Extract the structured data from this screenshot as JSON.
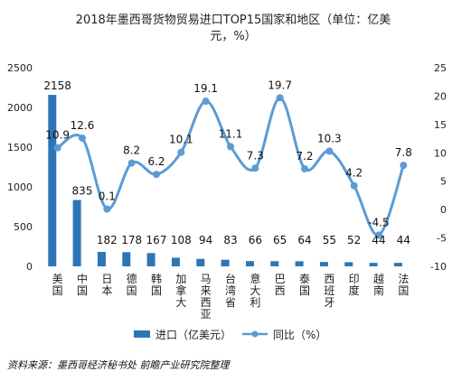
{
  "chart_data": {
    "type": "bar",
    "title": "2018年墨西哥货物贸易进口TOP15国家和地区（单位：亿美元，%）",
    "categories": [
      "美国",
      "中国",
      "日本",
      "德国",
      "韩国",
      "加拿大",
      "马来西亚",
      "台湾省",
      "意大利",
      "巴西",
      "泰国",
      "西班牙",
      "印度",
      "越南",
      "法国"
    ],
    "series": [
      {
        "name": "进口（亿美元）",
        "type": "bar",
        "axis": "left",
        "color": "#2e75b6",
        "values": [
          2158,
          835,
          182,
          178,
          167,
          108,
          94,
          83,
          66,
          65,
          64,
          55,
          52,
          44,
          44
        ]
      },
      {
        "name": "同比（%）",
        "type": "line",
        "axis": "right",
        "color": "#5b9bd5",
        "values": [
          10.9,
          12.6,
          0.1,
          8.2,
          6.2,
          10.1,
          19.1,
          11.1,
          7.3,
          19.7,
          7.2,
          10.3,
          4.2,
          -4.5,
          7.8
        ]
      }
    ],
    "ylim_left": [
      0,
      2500
    ],
    "yticks_left": [
      0,
      500,
      1000,
      1500,
      2000,
      2500
    ],
    "ylim_right": [
      -10,
      25
    ],
    "yticks_right": [
      -10,
      -5,
      0,
      5,
      10,
      15,
      20,
      25
    ],
    "grid": false,
    "legend": "bottom"
  },
  "legend": {
    "bar_label": "进口（亿美元）",
    "line_label": "同比（%）"
  },
  "source": "资料来源：墨西哥经济秘书处 前瞻产业研究院整理"
}
